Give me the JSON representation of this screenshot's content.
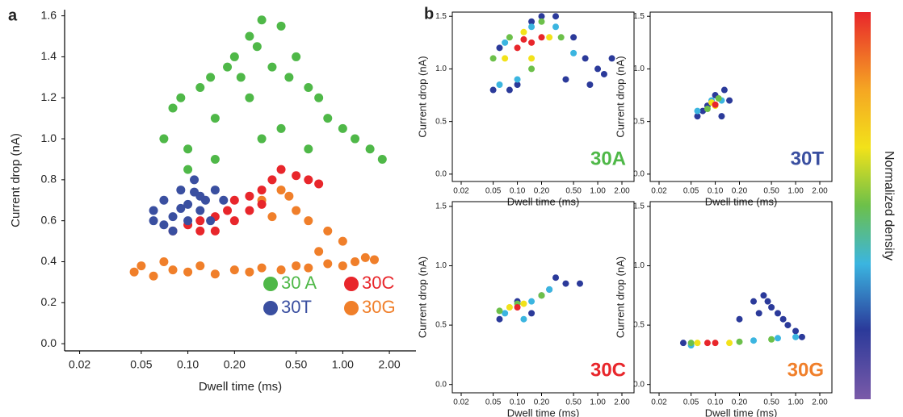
{
  "colorbar": {
    "label": "Normalized density"
  },
  "chart_data": [
    {
      "type": "scatter",
      "panel_label": "a",
      "xlabel": "Dwell time (ms)",
      "ylabel": "Current drop (nA)",
      "xscale": "log",
      "legend": "lower right",
      "xlim": [
        0.016,
        2.97
      ],
      "ylim": [
        -0.035,
        1.63
      ],
      "xticks": [
        0.02,
        0.05,
        {
          "value": 0.1,
          "label": "0.10"
        },
        {
          "value": 0.2,
          "label": "0.20"
        },
        {
          "value": 0.5,
          "label": "0.50"
        },
        {
          "value": 1,
          "label": "1.00"
        },
        {
          "value": 2,
          "label": "2.00"
        }
      ],
      "yticks": [
        {
          "value": 0,
          "label": "0.0"
        },
        0.2,
        0.4,
        0.6,
        0.8,
        {
          "value": 1,
          "label": "1.0"
        },
        1.2,
        1.4,
        1.6
      ],
      "series": [
        {
          "name": "30 A",
          "color": "#4fb848",
          "x": [
            0.07,
            0.08,
            0.09,
            0.1,
            0.12,
            0.14,
            0.15,
            0.18,
            0.2,
            0.22,
            0.25,
            0.28,
            0.3,
            0.35,
            0.4,
            0.45,
            0.5,
            0.6,
            0.7,
            0.8,
            1.0,
            1.2,
            1.5,
            1.8,
            0.25,
            0.3,
            0.15,
            0.1,
            0.4,
            0.6
          ],
          "values": [
            1.0,
            1.15,
            1.2,
            0.95,
            1.25,
            1.3,
            1.1,
            1.35,
            1.4,
            1.3,
            1.5,
            1.45,
            1.58,
            1.35,
            1.55,
            1.3,
            1.4,
            1.25,
            1.2,
            1.1,
            1.05,
            1.0,
            0.95,
            0.9,
            1.2,
            1.0,
            0.9,
            0.85,
            1.05,
            0.95
          ]
        },
        {
          "name": "30G",
          "color": "#f07f2a",
          "x": [
            0.045,
            0.05,
            0.06,
            0.07,
            0.08,
            0.1,
            0.12,
            0.15,
            0.2,
            0.25,
            0.3,
            0.4,
            0.5,
            0.6,
            0.8,
            1.0,
            1.2,
            1.4,
            1.6,
            0.3,
            0.4,
            0.5,
            0.6,
            0.8,
            1.0,
            0.35,
            0.45,
            0.7
          ],
          "values": [
            0.35,
            0.38,
            0.33,
            0.4,
            0.36,
            0.35,
            0.38,
            0.34,
            0.36,
            0.35,
            0.37,
            0.36,
            0.38,
            0.37,
            0.39,
            0.38,
            0.4,
            0.42,
            0.41,
            0.7,
            0.75,
            0.65,
            0.6,
            0.55,
            0.5,
            0.62,
            0.72,
            0.45
          ]
        },
        {
          "name": "30C",
          "color": "#e8262b",
          "x": [
            0.08,
            0.1,
            0.12,
            0.15,
            0.18,
            0.2,
            0.25,
            0.3,
            0.35,
            0.4,
            0.5,
            0.6,
            0.7,
            0.2,
            0.25,
            0.3,
            0.15,
            0.12
          ],
          "values": [
            0.55,
            0.58,
            0.6,
            0.62,
            0.65,
            0.7,
            0.72,
            0.75,
            0.8,
            0.85,
            0.82,
            0.8,
            0.78,
            0.6,
            0.65,
            0.68,
            0.55,
            0.55
          ]
        },
        {
          "name": "30T",
          "color": "#3a4fa0",
          "x": [
            0.06,
            0.06,
            0.07,
            0.08,
            0.09,
            0.1,
            0.11,
            0.12,
            0.13,
            0.14,
            0.15,
            0.17,
            0.08,
            0.1,
            0.12,
            0.07,
            0.09,
            0.11
          ],
          "values": [
            0.6,
            0.65,
            0.7,
            0.55,
            0.75,
            0.6,
            0.8,
            0.65,
            0.7,
            0.6,
            0.75,
            0.7,
            0.62,
            0.68,
            0.72,
            0.58,
            0.66,
            0.74
          ]
        }
      ]
    },
    {
      "type": "scatter",
      "panel_label": "b",
      "annotation": "30A",
      "annotation_color": "#4fb848",
      "xlabel": "Dwell time (ms)",
      "ylabel": "Current drop (nA)",
      "xscale": "log",
      "xlim": [
        0.0155,
        2.83
      ],
      "ylim": [
        -0.07,
        1.54
      ],
      "xticks": [
        0.02,
        0.05,
        {
          "value": 0.1,
          "label": "0.10"
        },
        {
          "value": 0.2,
          "label": "0.20"
        },
        {
          "value": 0.5,
          "label": "0.50"
        },
        {
          "value": 1,
          "label": "1.00"
        },
        {
          "value": 2,
          "label": "2.00"
        }
      ],
      "yticks": [
        {
          "value": 0,
          "label": "0.0"
        },
        0.5,
        {
          "value": 1,
          "label": "1.0"
        },
        1.5
      ],
      "series": [
        {
          "color": "#2b3a9a",
          "x": [
            0.05,
            0.06,
            0.08,
            0.1,
            0.15,
            0.2,
            0.3,
            0.5,
            0.7,
            1.0,
            1.2,
            1.5,
            0.8,
            0.4
          ],
          "values": [
            0.8,
            1.2,
            0.8,
            0.85,
            1.45,
            1.5,
            1.5,
            1.3,
            1.1,
            1.0,
            0.95,
            1.1,
            0.85,
            0.9
          ]
        },
        {
          "color": "#3bb5e0",
          "x": [
            0.06,
            0.07,
            0.1,
            0.15,
            0.3,
            0.5
          ],
          "values": [
            0.85,
            1.25,
            0.9,
            1.4,
            1.4,
            1.15
          ]
        },
        {
          "color": "#6cc04a",
          "x": [
            0.05,
            0.08,
            0.2,
            0.35,
            0.15
          ],
          "values": [
            1.1,
            1.3,
            1.45,
            1.3,
            1.0
          ]
        },
        {
          "color": "#f2e21a",
          "x": [
            0.07,
            0.12,
            0.25,
            0.15
          ],
          "values": [
            1.1,
            1.35,
            1.3,
            1.1
          ]
        },
        {
          "color": "#e8262b",
          "x": [
            0.1,
            0.15,
            0.2,
            0.12
          ],
          "values": [
            1.2,
            1.25,
            1.3,
            1.28
          ]
        }
      ]
    },
    {
      "type": "scatter",
      "annotation": "30T",
      "annotation_color": "#3a4fa0",
      "xlabel": "Dwell time (ms)",
      "ylabel": "Current drop (nA)",
      "xscale": "log",
      "xlim": [
        0.0155,
        2.83
      ],
      "ylim": [
        -0.07,
        1.54
      ],
      "xticks": [
        0.02,
        0.05,
        {
          "value": 0.1,
          "label": "0.10"
        },
        {
          "value": 0.2,
          "label": "0.20"
        },
        {
          "value": 0.5,
          "label": "0.50"
        },
        {
          "value": 1,
          "label": "1.00"
        },
        {
          "value": 2,
          "label": "2.00"
        }
      ],
      "yticks": [
        {
          "value": 0,
          "label": "0.0"
        },
        0.5,
        {
          "value": 1,
          "label": "1.0"
        },
        1.5
      ],
      "series": [
        {
          "color": "#2b3a9a",
          "x": [
            0.06,
            0.08,
            0.1,
            0.13,
            0.15,
            0.07,
            0.12
          ],
          "values": [
            0.55,
            0.65,
            0.75,
            0.8,
            0.7,
            0.6,
            0.55
          ]
        },
        {
          "color": "#3bb5e0",
          "x": [
            0.06,
            0.09,
            0.12
          ],
          "values": [
            0.6,
            0.7,
            0.7
          ]
        },
        {
          "color": "#6cc04a",
          "x": [
            0.08,
            0.11
          ],
          "values": [
            0.62,
            0.72
          ]
        },
        {
          "color": "#f2e21a",
          "x": [
            0.09,
            0.1
          ],
          "values": [
            0.68,
            0.65
          ]
        },
        {
          "color": "#e8262b",
          "x": [
            0.1
          ],
          "values": [
            0.66
          ]
        }
      ]
    },
    {
      "type": "scatter",
      "annotation": "30C",
      "annotation_color": "#e8262b",
      "xlabel": "Dwell time (ms)",
      "ylabel": "Current drop (nA)",
      "xscale": "log",
      "xlim": [
        0.0155,
        2.83
      ],
      "ylim": [
        -0.07,
        1.54
      ],
      "xticks": [
        0.02,
        0.05,
        {
          "value": 0.1,
          "label": "0.10"
        },
        {
          "value": 0.2,
          "label": "0.20"
        },
        {
          "value": 0.5,
          "label": "0.50"
        },
        {
          "value": 1,
          "label": "1.00"
        },
        {
          "value": 2,
          "label": "2.00"
        }
      ],
      "yticks": [
        {
          "value": 0,
          "label": "0.0"
        },
        0.5,
        {
          "value": 1,
          "label": "1.0"
        },
        1.5
      ],
      "series": [
        {
          "color": "#2b3a9a",
          "x": [
            0.06,
            0.1,
            0.2,
            0.3,
            0.4,
            0.6,
            0.25,
            0.15
          ],
          "values": [
            0.55,
            0.7,
            0.75,
            0.9,
            0.85,
            0.85,
            0.8,
            0.6
          ]
        },
        {
          "color": "#3bb5e0",
          "x": [
            0.07,
            0.15,
            0.25,
            0.12
          ],
          "values": [
            0.6,
            0.7,
            0.8,
            0.55
          ]
        },
        {
          "color": "#6cc04a",
          "x": [
            0.06,
            0.1,
            0.2
          ],
          "values": [
            0.62,
            0.68,
            0.75
          ]
        },
        {
          "color": "#f2e21a",
          "x": [
            0.08,
            0.12
          ],
          "values": [
            0.65,
            0.68
          ]
        },
        {
          "color": "#e8262b",
          "x": [
            0.1
          ],
          "values": [
            0.65
          ]
        }
      ]
    },
    {
      "type": "scatter",
      "annotation": "30G",
      "annotation_color": "#f07f2a",
      "xlabel": "Dwell time (ms)",
      "ylabel": "Current drop (nA)",
      "xscale": "log",
      "xlim": [
        0.0155,
        2.83
      ],
      "ylim": [
        -0.07,
        1.54
      ],
      "xticks": [
        0.02,
        0.05,
        {
          "value": 0.1,
          "label": "0.10"
        },
        {
          "value": 0.2,
          "label": "0.20"
        },
        {
          "value": 0.5,
          "label": "0.50"
        },
        {
          "value": 1,
          "label": "1.00"
        },
        {
          "value": 2,
          "label": "2.00"
        }
      ],
      "yticks": [
        {
          "value": 0,
          "label": "0.0"
        },
        0.5,
        {
          "value": 1,
          "label": "1.0"
        },
        1.5
      ],
      "series": [
        {
          "color": "#2b3a9a",
          "x": [
            0.2,
            0.3,
            0.4,
            0.5,
            0.6,
            0.8,
            1.0,
            0.35,
            0.45,
            0.7,
            0.04,
            1.2
          ],
          "values": [
            0.55,
            0.7,
            0.75,
            0.65,
            0.6,
            0.5,
            0.45,
            0.6,
            0.7,
            0.55,
            0.35,
            0.4
          ]
        },
        {
          "color": "#3bb5e0",
          "x": [
            0.05,
            0.3,
            0.6,
            1.0
          ],
          "values": [
            0.33,
            0.37,
            0.39,
            0.4
          ]
        },
        {
          "color": "#6cc04a",
          "x": [
            0.05,
            0.2,
            0.5
          ],
          "values": [
            0.35,
            0.36,
            0.38
          ]
        },
        {
          "color": "#f2e21a",
          "x": [
            0.06,
            0.15
          ],
          "values": [
            0.35,
            0.35
          ]
        },
        {
          "color": "#e8262b",
          "x": [
            0.08,
            0.1
          ],
          "values": [
            0.35,
            0.35
          ]
        }
      ]
    }
  ]
}
